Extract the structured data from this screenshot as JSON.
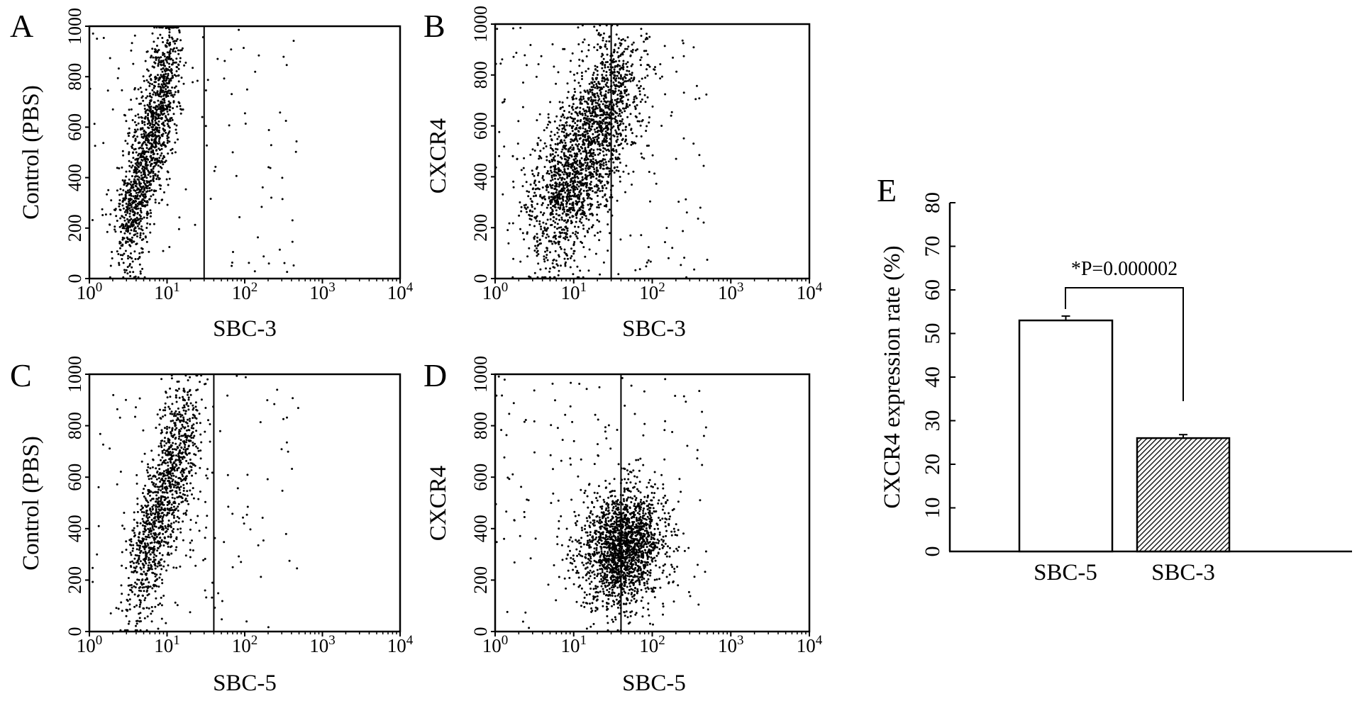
{
  "figure": {
    "panels": [
      {
        "letter": "A",
        "xlabel": "SBC-3",
        "ylabel": "Control (PBS)"
      },
      {
        "letter": "B",
        "xlabel": "SBC-3",
        "ylabel": "CXCR4"
      },
      {
        "letter": "C",
        "xlabel": "SBC-5",
        "ylabel": "Control (PBS)"
      },
      {
        "letter": "D",
        "xlabel": "SBC-5",
        "ylabel": "CXCR4"
      },
      {
        "letter": "E"
      }
    ]
  },
  "chart_data": [
    {
      "type": "scatter",
      "panel": "A",
      "xlabel": "SBC-3",
      "ylabel": "Control (PBS)",
      "xscale": "log",
      "xlim": [
        1,
        10000
      ],
      "ylim": [
        0,
        1000
      ],
      "xticks": [
        {
          "base": "10",
          "exp": "0"
        },
        {
          "base": "10",
          "exp": "1"
        },
        {
          "base": "10",
          "exp": "2"
        },
        {
          "base": "10",
          "exp": "3"
        },
        {
          "base": "10",
          "exp": "4"
        }
      ],
      "yticks": [
        "0",
        "200",
        "400",
        "600",
        "800",
        "1000"
      ],
      "gate_x": 30,
      "cluster": {
        "x_from": 3,
        "x_to": 12,
        "y_from": 150,
        "y_to": 900,
        "spread": 0.2
      },
      "points_approx": 1500
    },
    {
      "type": "scatter",
      "panel": "B",
      "xlabel": "SBC-3",
      "ylabel": "CXCR4",
      "xscale": "log",
      "xlim": [
        1,
        10000
      ],
      "ylim": [
        0,
        1000
      ],
      "xticks": [
        {
          "base": "10",
          "exp": "0"
        },
        {
          "base": "10",
          "exp": "1"
        },
        {
          "base": "10",
          "exp": "2"
        },
        {
          "base": "10",
          "exp": "3"
        },
        {
          "base": "10",
          "exp": "4"
        }
      ],
      "yticks": [
        "0",
        "200",
        "400",
        "600",
        "800",
        "1000"
      ],
      "gate_x": 30,
      "cluster": {
        "x_from": 5,
        "x_to": 40,
        "y_from": 200,
        "y_to": 800,
        "spread": 0.45
      },
      "points_approx": 2200
    },
    {
      "type": "scatter",
      "panel": "C",
      "xlabel": "SBC-5",
      "ylabel": "Control (PBS)",
      "xscale": "log",
      "xlim": [
        1,
        10000
      ],
      "ylim": [
        0,
        1000
      ],
      "xticks": [
        {
          "base": "10",
          "exp": "0"
        },
        {
          "base": "10",
          "exp": "1"
        },
        {
          "base": "10",
          "exp": "2"
        },
        {
          "base": "10",
          "exp": "3"
        },
        {
          "base": "10",
          "exp": "4"
        }
      ],
      "yticks": [
        "0",
        "200",
        "400",
        "600",
        "800",
        "1000"
      ],
      "gate_x": 40,
      "cluster": {
        "x_from": 4,
        "x_to": 20,
        "y_from": 150,
        "y_to": 850,
        "spread": 0.25
      },
      "points_approx": 1300
    },
    {
      "type": "scatter",
      "panel": "D",
      "xlabel": "SBC-5",
      "ylabel": "CXCR4",
      "xscale": "log",
      "xlim": [
        1,
        10000
      ],
      "ylim": [
        0,
        1000
      ],
      "xticks": [
        {
          "base": "10",
          "exp": "0"
        },
        {
          "base": "10",
          "exp": "1"
        },
        {
          "base": "10",
          "exp": "2"
        },
        {
          "base": "10",
          "exp": "3"
        },
        {
          "base": "10",
          "exp": "4"
        }
      ],
      "yticks": [
        "0",
        "200",
        "400",
        "600",
        "800",
        "1000"
      ],
      "gate_x": 40,
      "cluster": {
        "x_from": 30,
        "x_to": 60,
        "y_from": 250,
        "y_to": 400,
        "spread": 0.5
      },
      "points_approx": 2000
    },
    {
      "type": "bar",
      "panel": "E",
      "categories": [
        "SBC-5",
        "SBC-3"
      ],
      "values": [
        53,
        26
      ],
      "errors": [
        1,
        0.8
      ],
      "fills": [
        "#ffffff",
        "hatched"
      ],
      "ylabel": "CXCR4 expression rate (%)",
      "ylim": [
        0,
        80
      ],
      "yticks": [
        "0",
        "10",
        "20",
        "30",
        "40",
        "50",
        "60",
        "70",
        "80"
      ],
      "annotation": "*P=0.000002"
    }
  ]
}
